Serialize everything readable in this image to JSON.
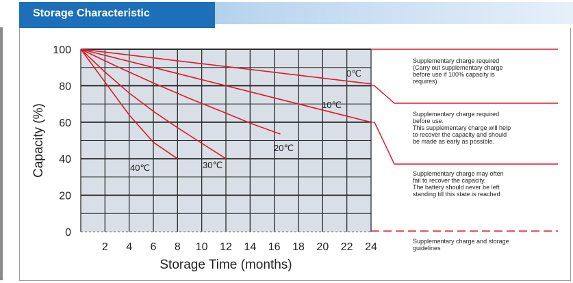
{
  "header": {
    "title": "Storage Characteristic"
  },
  "chart_data": {
    "type": "line",
    "title": "Storage Characteristic",
    "xlabel": "Storage Time (months)",
    "ylabel": "Capacity  (%)",
    "xlim": [
      0,
      24
    ],
    "ylim": [
      0,
      100
    ],
    "x_ticks": [
      2,
      4,
      6,
      8,
      10,
      12,
      14,
      16,
      18,
      20,
      22,
      24
    ],
    "y_ticks": [
      0,
      20,
      40,
      60,
      80,
      100
    ],
    "grid": true,
    "line_color": "#e0192b",
    "plot_bg": "#d9dfe6",
    "series": [
      {
        "name": "0℃",
        "label": "0℃",
        "x": [
          0,
          24
        ],
        "y": [
          100,
          81
        ]
      },
      {
        "name": "10℃",
        "label": "10℃",
        "x": [
          0,
          24
        ],
        "y": [
          100,
          60
        ]
      },
      {
        "name": "20℃",
        "label": "20℃",
        "x": [
          0,
          3,
          6,
          9,
          12,
          14,
          16.5
        ],
        "y": [
          100,
          90.5,
          81.5,
          73,
          65,
          59.5,
          53.5
        ]
      },
      {
        "name": "30℃",
        "label": "30℃",
        "x": [
          0,
          2,
          4,
          6,
          8,
          10,
          12
        ],
        "y": [
          100,
          87.5,
          76,
          66,
          57,
          48.5,
          40
        ]
      },
      {
        "name": "40℃",
        "label": "40℃",
        "x": [
          0,
          2,
          4,
          6,
          8
        ],
        "y": [
          100,
          82,
          64,
          49,
          40
        ]
      }
    ],
    "zones": [
      {
        "top": 100,
        "bottom": 80,
        "text": [
          "Supplementary charge required",
          "(Carry out supplementary charge",
          "before use if 100% capacity is",
          "requires)"
        ]
      },
      {
        "top": 80,
        "bottom": 60,
        "text": [
          "Supplementary charge required",
          "before use.",
          "This supplementary charge will help",
          "to recover the capacity and should",
          "be made  as early as possible."
        ]
      },
      {
        "top": 60,
        "bottom": 40,
        "text": [
          "Supplementary charge may often",
          "fail to recover the capacity.",
          "The battery should never be left",
          "standing till this state is reached"
        ]
      },
      {
        "top": 40,
        "bottom": 0,
        "text": [
          "Supplementary charge and storage",
          "guidelines"
        ]
      }
    ]
  }
}
